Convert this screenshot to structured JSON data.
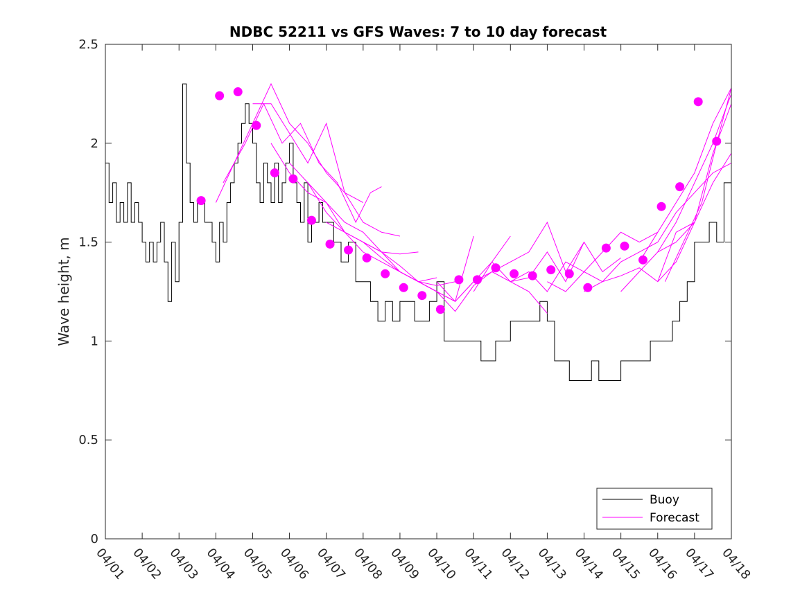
{
  "chart_data": {
    "type": "line",
    "title": "NDBC 52211 vs GFS Waves: 7 to 10 day forecast",
    "xlabel": "",
    "ylabel": "Wave height, m",
    "xlim": [
      0,
      17
    ],
    "ylim": [
      0,
      2.5
    ],
    "x_tick_labels": [
      "04/01",
      "04/02",
      "04/03",
      "04/04",
      "04/05",
      "04/06",
      "04/07",
      "04/08",
      "04/09",
      "04/10",
      "04/11",
      "04/12",
      "04/13",
      "04/14",
      "04/15",
      "04/16",
      "04/17",
      "04/18"
    ],
    "y_ticks": [
      0,
      0.5,
      1,
      1.5,
      2,
      2.5
    ],
    "y_tick_labels": [
      "0",
      "0.5",
      "1",
      "1.5",
      "2",
      "2.5"
    ],
    "x_units": "days since 04/01 00:00",
    "colors": {
      "buoy": "#000000",
      "forecast": "#ff00ff"
    },
    "legend": {
      "position": "bottom-right",
      "entries": [
        "Buoy",
        "Forecast"
      ]
    },
    "series": [
      {
        "name": "Buoy",
        "style": "line",
        "x": [
          0,
          0.1,
          0.2,
          0.3,
          0.4,
          0.5,
          0.6,
          0.7,
          0.8,
          0.9,
          1.0,
          1.1,
          1.2,
          1.3,
          1.4,
          1.5,
          1.6,
          1.7,
          1.8,
          1.9,
          2.0,
          2.1,
          2.2,
          2.3,
          2.4,
          2.5,
          2.6,
          2.7,
          2.8,
          2.9,
          3.0,
          3.1,
          3.2,
          3.3,
          3.4,
          3.5,
          3.6,
          3.7,
          3.8,
          3.9,
          4.0,
          4.1,
          4.2,
          4.3,
          4.4,
          4.5,
          4.6,
          4.7,
          4.8,
          4.9,
          5.0,
          5.1,
          5.2,
          5.3,
          5.4,
          5.5,
          5.6,
          5.7,
          5.8,
          5.9,
          6.0,
          6.2,
          6.4,
          6.6,
          6.8,
          7.0,
          7.2,
          7.4,
          7.6,
          7.8,
          8.0,
          8.2,
          8.4,
          8.6,
          8.8,
          9.0,
          9.2,
          9.4,
          9.6,
          9.8,
          10.0,
          10.2,
          10.4,
          10.6,
          10.8,
          11.0,
          11.2,
          11.4,
          11.6,
          11.8,
          12.0,
          12.2,
          12.4,
          12.6,
          12.8,
          13.0,
          13.2,
          13.4,
          13.6,
          13.8,
          14.0,
          14.2,
          14.4,
          14.6,
          14.8,
          15.0,
          15.2,
          15.4,
          15.6,
          15.8,
          16.0,
          16.2,
          16.4,
          16.6,
          16.8,
          17.0
        ],
        "values": [
          1.9,
          1.7,
          1.8,
          1.6,
          1.7,
          1.6,
          1.8,
          1.6,
          1.7,
          1.6,
          1.5,
          1.4,
          1.5,
          1.4,
          1.5,
          1.6,
          1.4,
          1.2,
          1.5,
          1.3,
          1.6,
          2.3,
          1.9,
          1.7,
          1.6,
          1.7,
          1.7,
          1.6,
          1.6,
          1.5,
          1.4,
          1.6,
          1.5,
          1.7,
          1.8,
          1.9,
          2.0,
          2.1,
          2.2,
          2.1,
          2.0,
          1.8,
          1.7,
          1.9,
          1.8,
          1.7,
          1.9,
          1.7,
          1.8,
          1.9,
          2.0,
          1.8,
          1.7,
          1.6,
          1.8,
          1.5,
          1.6,
          1.6,
          1.7,
          1.6,
          1.6,
          1.5,
          1.4,
          1.5,
          1.3,
          1.3,
          1.2,
          1.1,
          1.2,
          1.1,
          1.2,
          1.2,
          1.1,
          1.1,
          1.2,
          1.3,
          1.0,
          1.0,
          1.0,
          1.0,
          1.0,
          0.9,
          0.9,
          1.0,
          1.0,
          1.1,
          1.1,
          1.1,
          1.1,
          1.2,
          1.1,
          0.9,
          0.9,
          0.8,
          0.8,
          0.8,
          0.9,
          0.8,
          0.8,
          0.8,
          0.9,
          0.9,
          0.9,
          0.9,
          1.0,
          1.0,
          1.0,
          1.1,
          1.2,
          1.3,
          1.5,
          1.5,
          1.6,
          1.5,
          1.8,
          1.8
        ]
      },
      {
        "name": "Forecast",
        "style": "points",
        "x": [
          2.6,
          3.1,
          3.6,
          4.1,
          4.6,
          5.1,
          5.6,
          6.1,
          6.6,
          7.1,
          7.6,
          8.1,
          8.6,
          9.1,
          9.6,
          10.1,
          10.6,
          11.1,
          11.6,
          12.1,
          12.6,
          13.1,
          13.6,
          14.1,
          14.6,
          15.1,
          15.6,
          16.1,
          16.6
        ],
        "values": [
          1.71,
          2.24,
          2.26,
          2.09,
          1.85,
          1.82,
          1.61,
          1.49,
          1.46,
          1.42,
          1.34,
          1.27,
          1.23,
          1.16,
          1.31,
          1.31,
          1.37,
          1.34,
          1.33,
          1.36,
          1.34,
          1.27,
          1.47,
          1.48,
          1.41,
          1.68,
          1.78,
          2.21,
          2.01
        ]
      },
      {
        "name": "Forecast run 1",
        "style": "line",
        "x": [
          3.0,
          3.5,
          4.0,
          4.5,
          5.0,
          5.5,
          6.0,
          6.5,
          7.0
        ],
        "values": [
          1.7,
          1.9,
          2.1,
          2.3,
          2.1,
          2.0,
          1.85,
          1.75,
          1.7
        ]
      },
      {
        "name": "Forecast run 2",
        "style": "line",
        "x": [
          3.2,
          3.8,
          4.3,
          4.8,
          5.3,
          5.8,
          6.3,
          6.8,
          7.2,
          7.5
        ],
        "values": [
          1.8,
          2.0,
          2.2,
          2.0,
          2.1,
          1.9,
          1.8,
          1.6,
          1.75,
          1.78
        ]
      },
      {
        "name": "Forecast run 3",
        "style": "line",
        "x": [
          4.0,
          4.5,
          5.0,
          5.5,
          6.0,
          6.5,
          7.0,
          7.5,
          8.0
        ],
        "values": [
          2.2,
          2.2,
          2.05,
          1.9,
          2.1,
          1.75,
          1.6,
          1.55,
          1.53
        ]
      },
      {
        "name": "Forecast run 4",
        "style": "line",
        "x": [
          4.5,
          5.0,
          5.5,
          6.0,
          6.5,
          7.0,
          7.5,
          8.0,
          8.5
        ],
        "values": [
          2.0,
          1.85,
          1.75,
          1.7,
          1.55,
          1.5,
          1.45,
          1.44,
          1.45
        ]
      },
      {
        "name": "Forecast run 5",
        "style": "line",
        "x": [
          5.0,
          5.5,
          6.0,
          6.5,
          7.0,
          7.5,
          8.0,
          8.5,
          9.0
        ],
        "values": [
          1.9,
          1.8,
          1.7,
          1.6,
          1.55,
          1.45,
          1.35,
          1.3,
          1.32
        ]
      },
      {
        "name": "Forecast run 6",
        "style": "line",
        "x": [
          5.5,
          6.0,
          6.5,
          7.0,
          7.5,
          8.0,
          8.5,
          9.0,
          9.5
        ],
        "values": [
          1.8,
          1.65,
          1.55,
          1.45,
          1.4,
          1.35,
          1.3,
          1.28,
          1.3
        ]
      },
      {
        "name": "Forecast run 7",
        "style": "line",
        "x": [
          6.0,
          6.5,
          7.0,
          7.5,
          8.0,
          8.5,
          9.0,
          9.5,
          10.0
        ],
        "values": [
          1.6,
          1.55,
          1.5,
          1.45,
          1.38,
          1.3,
          1.25,
          1.2,
          1.53
        ]
      },
      {
        "name": "Forecast run 8",
        "style": "line",
        "x": [
          7.0,
          7.5,
          8.0,
          8.5,
          9.0,
          9.5,
          10.0,
          10.5,
          11.0
        ],
        "values": [
          1.5,
          1.42,
          1.35,
          1.3,
          1.25,
          1.2,
          1.3,
          1.4,
          1.53
        ]
      },
      {
        "name": "Forecast run 9",
        "style": "line",
        "x": [
          8.0,
          8.5,
          9.0,
          9.5,
          10.0,
          10.5,
          11.0,
          11.5,
          12.0
        ],
        "values": [
          1.35,
          1.3,
          1.25,
          1.15,
          1.28,
          1.35,
          1.3,
          1.25,
          1.14
        ]
      },
      {
        "name": "Forecast run 10",
        "style": "line",
        "x": [
          9.0,
          9.5,
          10.0,
          10.5,
          11.0,
          11.5,
          12.0,
          12.5,
          13.0
        ],
        "values": [
          1.3,
          1.2,
          1.3,
          1.35,
          1.4,
          1.45,
          1.6,
          1.35,
          1.5
        ]
      },
      {
        "name": "Forecast run 11",
        "style": "line",
        "x": [
          10.0,
          10.5,
          11.0,
          11.5,
          12.0,
          12.5,
          13.0,
          13.5,
          14.0
        ],
        "values": [
          1.25,
          1.4,
          1.3,
          1.32,
          1.45,
          1.3,
          1.5,
          1.35,
          1.42
        ]
      },
      {
        "name": "Forecast run 12",
        "style": "line",
        "x": [
          11.0,
          11.5,
          12.0,
          12.5,
          13.0,
          13.5,
          14.0,
          14.5,
          15.0
        ],
        "values": [
          1.3,
          1.35,
          1.25,
          1.4,
          1.35,
          1.45,
          1.55,
          1.5,
          1.55
        ]
      },
      {
        "name": "Forecast run 13",
        "style": "line",
        "x": [
          12.0,
          12.5,
          13.0,
          13.5,
          14.0,
          14.5,
          15.0,
          15.5,
          16.0
        ],
        "values": [
          1.3,
          1.25,
          1.35,
          1.3,
          1.33,
          1.37,
          1.3,
          1.55,
          1.6
        ]
      },
      {
        "name": "Forecast run 14",
        "style": "line",
        "x": [
          13.0,
          13.5,
          14.0,
          14.5,
          15.0,
          15.5,
          16.0,
          16.5,
          17.0
        ],
        "values": [
          1.25,
          1.3,
          1.4,
          1.45,
          1.5,
          1.65,
          1.75,
          1.85,
          1.9
        ]
      },
      {
        "name": "Forecast run 15",
        "style": "line",
        "x": [
          14.0,
          14.5,
          15.0,
          15.5,
          16.0,
          16.5,
          17.0
        ],
        "values": [
          1.25,
          1.35,
          1.45,
          1.6,
          1.8,
          2.0,
          2.25
        ]
      },
      {
        "name": "Forecast run 16",
        "style": "line",
        "x": [
          14.5,
          15.0,
          15.5,
          16.0,
          16.5,
          17.0
        ],
        "values": [
          1.4,
          1.55,
          1.7,
          1.85,
          2.1,
          2.28
        ]
      },
      {
        "name": "Forecast run 17",
        "style": "line",
        "x": [
          15.0,
          15.5,
          16.0,
          16.5,
          17.0
        ],
        "values": [
          1.45,
          1.5,
          1.6,
          1.95,
          2.2
        ]
      },
      {
        "name": "Forecast run 18",
        "style": "line",
        "x": [
          15.0,
          15.5,
          16.0,
          16.5,
          17.0
        ],
        "values": [
          1.3,
          1.4,
          1.6,
          1.8,
          1.95
        ]
      },
      {
        "name": "Forecast run 19",
        "style": "line",
        "x": [
          15.2,
          15.7,
          16.2,
          16.6,
          17.0
        ],
        "values": [
          1.3,
          1.5,
          1.7,
          2.0,
          2.28
        ]
      }
    ]
  }
}
